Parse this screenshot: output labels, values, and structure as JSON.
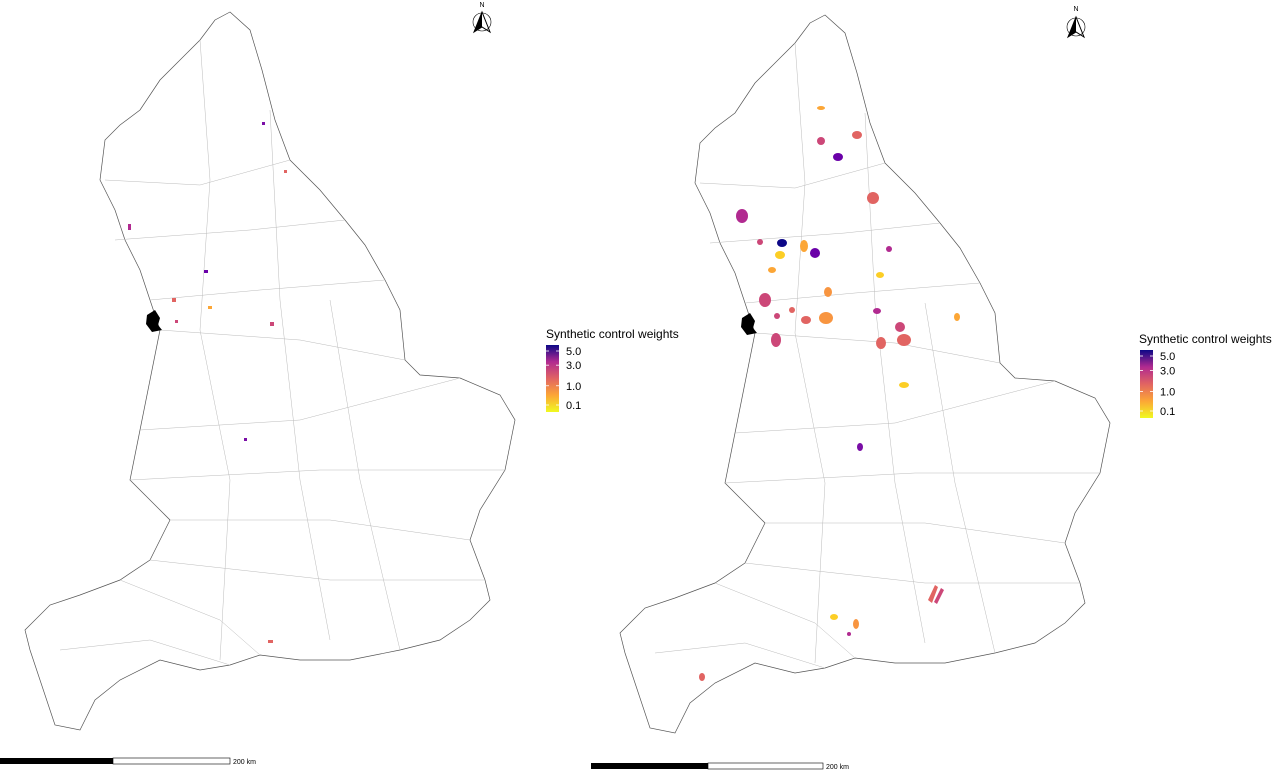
{
  "maps": [
    {
      "north": "N",
      "legend": {
        "title": "Synthetic control weights",
        "ticks": [
          {
            "value": 5,
            "label": "5.0"
          },
          {
            "value": 3,
            "label": "3.0"
          },
          {
            "value": 1,
            "label": "1.0"
          },
          {
            "value": 0.1,
            "label": "0.1"
          }
        ]
      },
      "scale": "200 km"
    },
    {
      "north": "N",
      "legend": {
        "title": "Synthetic control weights",
        "ticks": [
          {
            "value": 5,
            "label": "5.0"
          },
          {
            "value": 3,
            "label": "3.0"
          },
          {
            "value": 1,
            "label": "1.0"
          },
          {
            "value": 0.1,
            "label": "0.1"
          }
        ]
      },
      "scale": "200 km"
    }
  ]
}
